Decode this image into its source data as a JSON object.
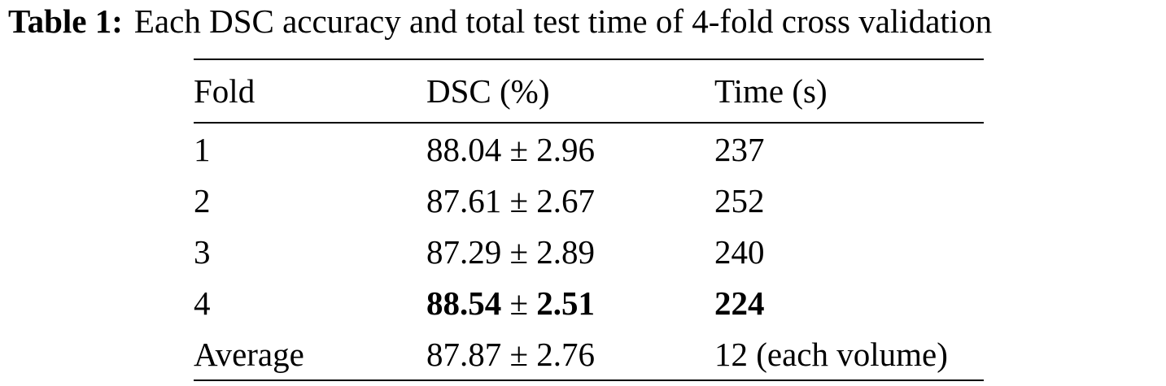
{
  "caption": {
    "label": "Table 1:",
    "text": "Each DSC accuracy and total test time of 4-fold cross validation"
  },
  "table": {
    "headers": [
      "Fold",
      "DSC (%)",
      "Time (s)"
    ],
    "rows": [
      {
        "fold": "1",
        "dsc_mean": "88.04",
        "dsc_pm": "±",
        "dsc_sd": "2.96",
        "time": "237",
        "bold": false
      },
      {
        "fold": "2",
        "dsc_mean": "87.61",
        "dsc_pm": "±",
        "dsc_sd": "2.67",
        "time": "252",
        "bold": false
      },
      {
        "fold": "3",
        "dsc_mean": "87.29",
        "dsc_pm": "±",
        "dsc_sd": "2.89",
        "time": "240",
        "bold": false
      },
      {
        "fold": "4",
        "dsc_mean": "88.54",
        "dsc_pm": "±",
        "dsc_sd": "2.51",
        "time": "224",
        "bold": true
      },
      {
        "fold": "Average",
        "dsc_mean": "87.87",
        "dsc_pm": "±",
        "dsc_sd": "2.76",
        "time": "12 (each volume)",
        "bold": false
      }
    ]
  }
}
